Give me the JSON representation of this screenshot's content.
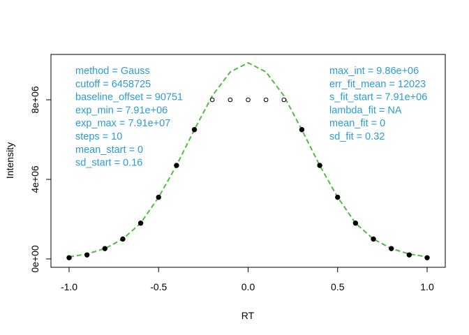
{
  "chart_data": {
    "type": "scatter",
    "xlabel": "RT",
    "ylabel": "Intensity",
    "xlim": [
      -1.0,
      1.0
    ],
    "ylim": [
      0,
      10000000
    ],
    "x_ticks": [
      {
        "value": -1.0,
        "label": "-1.0"
      },
      {
        "value": -0.5,
        "label": "-0.5"
      },
      {
        "value": 0.0,
        "label": "0.0"
      },
      {
        "value": 0.5,
        "label": "0.5"
      },
      {
        "value": 1.0,
        "label": "1.0"
      }
    ],
    "y_ticks": [
      {
        "value": 0,
        "label": "0e+00"
      },
      {
        "value": 4000000,
        "label": "4e+06"
      },
      {
        "value": 8000000,
        "label": "8e+06"
      }
    ],
    "series": [
      {
        "style": "filled-points",
        "x": [
          -1.0,
          -0.9,
          -0.8,
          -0.7,
          -0.6,
          -0.5,
          -0.4,
          -0.3,
          0.3,
          0.4,
          0.5,
          0.6,
          0.7,
          0.8,
          0.9,
          1.0
        ],
        "y": [
          60000,
          200000,
          520000,
          1000000,
          1800000,
          3100000,
          4700000,
          6500000,
          6500000,
          4700000,
          3100000,
          1800000,
          1000000,
          520000,
          200000,
          60000
        ]
      },
      {
        "style": "open-points",
        "x": [
          -0.2,
          -0.1,
          0.0,
          0.1,
          0.2
        ],
        "y": [
          8000000,
          8000000,
          8000000,
          8000000,
          8000000
        ]
      },
      {
        "style": "dashed-line",
        "color": "#4DBF40",
        "x": [
          -1.0,
          -0.9,
          -0.8,
          -0.7,
          -0.6,
          -0.5,
          -0.4,
          -0.3,
          -0.2,
          -0.1,
          0.0,
          0.1,
          0.2,
          0.3,
          0.4,
          0.5,
          0.6,
          0.7,
          0.8,
          0.9,
          1.0
        ],
        "y": [
          100000,
          250000,
          520000,
          1000000,
          1800000,
          3100000,
          4700000,
          6500000,
          8200000,
          9400000,
          9860000,
          9400000,
          8200000,
          6500000,
          4700000,
          3100000,
          1800000,
          1000000,
          520000,
          250000,
          100000
        ]
      }
    ],
    "annotations_left": [
      "method = Gauss",
      "cutoff = 6458725",
      "baseline_offset = 90751",
      "exp_min = 7.91e+06",
      "exp_max = 7.91e+07",
      "steps = 10",
      "mean_start = 0",
      "sd_start = 0.16"
    ],
    "annotations_right": [
      "max_int = 9.86e+06",
      "err_fit_mean = 12023",
      "s_fit_start = 7.91e+06",
      "lambda_fit = NA",
      "mean_fit = 0",
      "sd_fit = 0.32"
    ],
    "annotation_color": "#2B9DD9",
    "grid": false,
    "legend": "none"
  }
}
